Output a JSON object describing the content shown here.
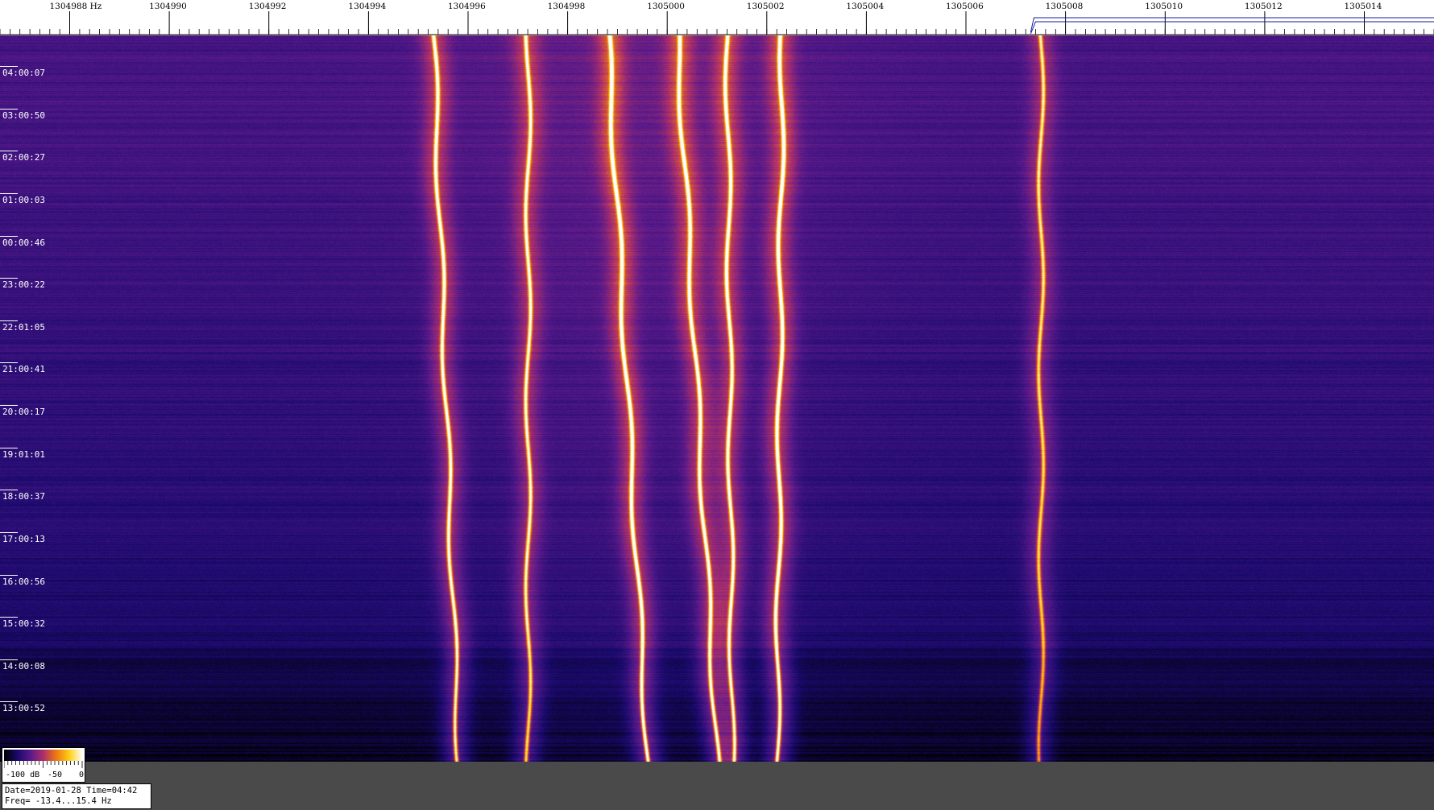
{
  "chart_data": {
    "type": "heatmap",
    "x_axis": {
      "unit_label": "Hz",
      "tick_labels": [
        "1304988",
        "1304990",
        "1304992",
        "1304994",
        "1304996",
        "1304998",
        "1305000",
        "1305002",
        "1305004",
        "1305006",
        "1305008",
        "1305010",
        "1305012",
        "1305014"
      ],
      "range_hz": [
        1304986.6,
        1305015.4
      ]
    },
    "y_axis": {
      "tick_labels": [
        "04:00:07",
        "03:00:50",
        "02:00:27",
        "01:00:03",
        "00:00:46",
        "23:00:22",
        "22:01:05",
        "21:00:41",
        "20:00:17",
        "19:01:01",
        "18:00:37",
        "17:00:13",
        "16:00:56",
        "15:00:32",
        "14:00:08",
        "13:00:52"
      ],
      "order": "newest at top"
    },
    "colorbar": {
      "tick_labels": [
        "-100 dB",
        "-50",
        "0"
      ],
      "range_db": [
        -100,
        0
      ],
      "colormap": [
        "#000000",
        "#1a0a6e",
        "#5a1a8a",
        "#b0306a",
        "#f07a10",
        "#ffd21a",
        "#ffffff"
      ]
    },
    "traces": [
      {
        "x_top": 1304995.3,
        "x_bottom": 1304995.8,
        "intensity": 0.9
      },
      {
        "x_top": 1304998.8,
        "x_bottom": 1304999.6,
        "intensity": 1.0
      },
      {
        "x_top": 1305000.2,
        "x_bottom": 1305001.0,
        "intensity": 0.95
      },
      {
        "x_top": 1305001.2,
        "x_bottom": 1305001.3,
        "intensity": 0.9
      },
      {
        "x_top": 1305002.3,
        "x_bottom": 1305002.2,
        "intensity": 1.0
      },
      {
        "x_top": 1304997.2,
        "x_bottom": 1304997.2,
        "intensity": 0.8
      },
      {
        "x_top": 1305007.5,
        "x_bottom": 1305007.5,
        "intensity": 0.7
      }
    ]
  },
  "info": {
    "line1": "Date=2019-01-28 Time=04:42",
    "line2": "Freq= -13.4...15.4 Hz"
  },
  "colors": {
    "background": "#2a1470",
    "panel": "#4a4a4a",
    "axis_bg": "#ffffff",
    "marker_blue": "#1a1aa0"
  }
}
